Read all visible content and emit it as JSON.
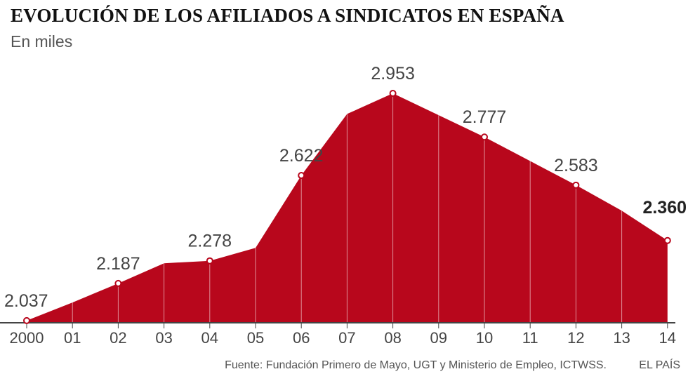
{
  "header": {
    "title": "EVOLUCIÓN DE LOS AFILIADOS A SINDICATOS EN ESPAÑA",
    "subtitle": "En miles"
  },
  "footer": {
    "source": "Fuente: Fundación Primero de Mayo, UGT y Ministerio de Empleo, ICTWSS.",
    "brand": "EL PAÍS"
  },
  "colors": {
    "area": "#b8071c",
    "markers": "#b8071c",
    "axis": "#444444"
  },
  "chart_data": {
    "type": "area",
    "title": "EVOLUCIÓN DE LOS AFILIADOS A SINDICATOS EN ESPAÑA",
    "subtitle": "En miles",
    "x": [
      "2000",
      "01",
      "02",
      "03",
      "04",
      "05",
      "06",
      "07",
      "08",
      "09",
      "10",
      "11",
      "12",
      "13",
      "14"
    ],
    "series": [
      {
        "values": [
          2037,
          2110,
          2187,
          2268,
          2278,
          2330,
          2622,
          2870,
          2953,
          2865,
          2777,
          2680,
          2583,
          2480,
          2360
        ]
      }
    ],
    "data_labels": [
      {
        "index": 0,
        "text": "2.037",
        "bold": false
      },
      {
        "index": 2,
        "text": "2.187",
        "bold": false
      },
      {
        "index": 4,
        "text": "2.278",
        "bold": false
      },
      {
        "index": 6,
        "text": "2.622",
        "bold": false
      },
      {
        "index": 8,
        "text": "2.953",
        "bold": false
      },
      {
        "index": 10,
        "text": "2.777",
        "bold": false
      },
      {
        "index": 12,
        "text": "2.583",
        "bold": false
      },
      {
        "index": 14,
        "text": "2.360",
        "bold": true
      }
    ],
    "markers_at": [
      0,
      2,
      4,
      6,
      8,
      10,
      12,
      14
    ],
    "xlabel": "",
    "ylabel": "",
    "grid": false,
    "legend": "none"
  }
}
